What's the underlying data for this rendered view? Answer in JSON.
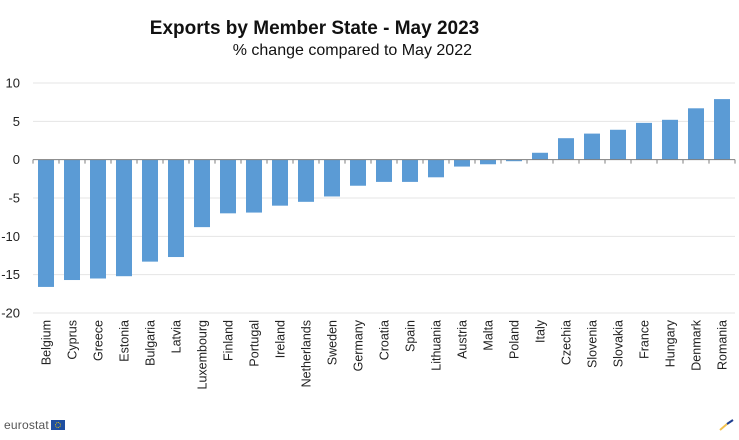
{
  "chart_data": {
    "type": "bar",
    "title": "Exports by Member State - May 2023",
    "subtitle": "% change compared to May 2022",
    "xlabel": "",
    "ylabel": "",
    "ylim": [
      -20,
      10
    ],
    "yticks": [
      10,
      5,
      0,
      -5,
      -10,
      -15,
      -20
    ],
    "grid": true,
    "legend": "none",
    "categories": [
      "Belgium",
      "Cyprus",
      "Greece",
      "Estonia",
      "Bulgaria",
      "Latvia",
      "Luxembourg",
      "Finland",
      "Portugal",
      "Ireland",
      "Netherlands",
      "Sweden",
      "Germany",
      "Croatia",
      "Spain",
      "Lithuania",
      "Austria",
      "Malta",
      "Poland",
      "Italy",
      "Czechia",
      "Slovenia",
      "Slovakia",
      "France",
      "Hungary",
      "Denmark",
      "Romania"
    ],
    "values": [
      -16.6,
      -15.7,
      -15.5,
      -15.2,
      -13.3,
      -12.7,
      -8.8,
      -7.0,
      -6.9,
      -6.0,
      -5.5,
      -4.8,
      -3.4,
      -2.9,
      -2.9,
      -2.3,
      -0.9,
      -0.6,
      -0.2,
      0.9,
      2.8,
      3.4,
      3.9,
      4.8,
      5.2,
      6.7,
      7.9
    ],
    "bar_color": "#5b9bd5"
  },
  "footer": {
    "logo_text": "eurostat"
  }
}
